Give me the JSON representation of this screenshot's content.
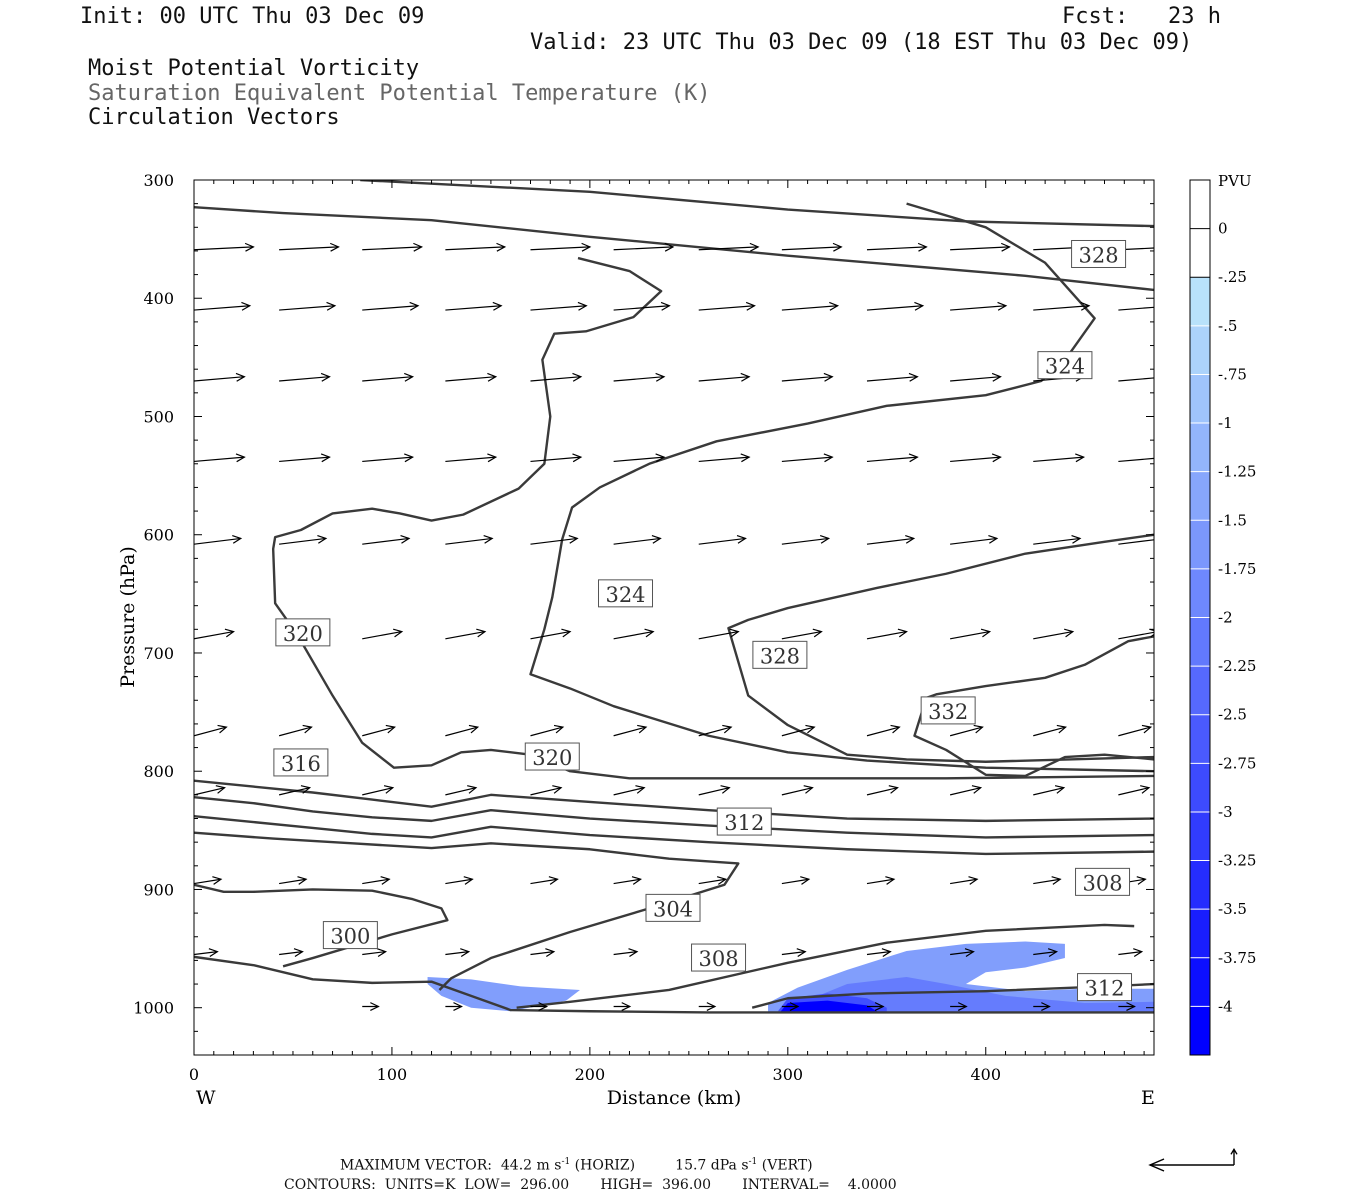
{
  "header": {
    "init": "Init: 00 UTC Thu 03 Dec 09",
    "fcst": "Fcst:   23 h",
    "valid": "Valid: 23 UTC Thu 03 Dec 09 (18 EST Thu 03 Dec 09)",
    "field1": "Moist Potential Vorticity",
    "field2": "Saturation Equivalent Potential Temperature (K)",
    "field3": "Circulation Vectors"
  },
  "footer": {
    "max_label": "MAXIMUM VECTOR:",
    "horiz_value": "44.2",
    "horiz_unit": "m s",
    "horiz_exp": "-1",
    "horiz_tag": "(HORIZ)",
    "vert_value": "15.7",
    "vert_unit": "dPa s",
    "vert_exp": "-1",
    "vert_tag": "(VERT)",
    "contours": "CONTOURS:  UNITS=K  LOW=  296.00       HIGH=  396.00       INTERVAL=    4.0000"
  },
  "colors": {
    "contour": "#3a3a3a",
    "pv_light": "#b8e2fb",
    "pv_dark": "#0000ff"
  },
  "chart_data": {
    "type": "contour",
    "xlabel": "Distance (km)",
    "ylabel": "Pressure (hPa)",
    "xlim": [
      0,
      485
    ],
    "ylim": [
      1040,
      300
    ],
    "x_ticks": [
      0,
      100,
      200,
      300,
      400
    ],
    "x_tick_labels": [
      "0",
      "100",
      "200",
      "300",
      "400"
    ],
    "y_ticks": [
      300,
      400,
      500,
      600,
      700,
      800,
      900,
      1000
    ],
    "y_tick_labels": [
      "300",
      "400",
      "500",
      "600",
      "700",
      "800",
      "900",
      "1000"
    ],
    "west_label": "W",
    "east_label": "E",
    "contour_labels": [
      {
        "text": "328",
        "x": 457,
        "p": 363
      },
      {
        "text": "324",
        "x": 440,
        "p": 457
      },
      {
        "text": "324",
        "x": 218,
        "p": 650
      },
      {
        "text": "320",
        "x": 55,
        "p": 683
      },
      {
        "text": "328",
        "x": 296,
        "p": 702
      },
      {
        "text": "332",
        "x": 381,
        "p": 749
      },
      {
        "text": "316",
        "x": 54,
        "p": 793
      },
      {
        "text": "320",
        "x": 181,
        "p": 788
      },
      {
        "text": "312",
        "x": 278,
        "p": 843
      },
      {
        "text": "308",
        "x": 459,
        "p": 894
      },
      {
        "text": "304",
        "x": 242,
        "p": 916
      },
      {
        "text": "300",
        "x": 79,
        "p": 939
      },
      {
        "text": "308",
        "x": 265,
        "p": 958
      },
      {
        "text": "312",
        "x": 460,
        "p": 983
      }
    ],
    "contour_lines": [
      [
        [
          84,
          300
        ],
        [
          200,
          310
        ],
        [
          300,
          325
        ],
        [
          390,
          335
        ],
        [
          485,
          339
        ]
      ],
      [
        [
          0,
          323
        ],
        [
          45,
          328
        ],
        [
          120,
          334
        ],
        [
          200,
          348
        ],
        [
          300,
          364
        ],
        [
          420,
          381
        ],
        [
          485,
          393
        ]
      ],
      [
        [
          194,
          366
        ],
        [
          220,
          377
        ],
        [
          236,
          394
        ],
        [
          222,
          416
        ],
        [
          198,
          428
        ],
        [
          182,
          430
        ],
        [
          176,
          452
        ],
        [
          180,
          500
        ],
        [
          177,
          540
        ],
        [
          164,
          561
        ],
        [
          136,
          583
        ],
        [
          120,
          588
        ],
        [
          104,
          582
        ],
        [
          90,
          578
        ],
        [
          70,
          582
        ],
        [
          54,
          596
        ],
        [
          41,
          602
        ],
        [
          40,
          612
        ],
        [
          41,
          658
        ],
        [
          52,
          684
        ],
        [
          70,
          736
        ],
        [
          85,
          776
        ],
        [
          101,
          797
        ],
        [
          120,
          795
        ],
        [
          135,
          784
        ],
        [
          150,
          782
        ],
        [
          170,
          786
        ],
        [
          190,
          800
        ],
        [
          220,
          806
        ],
        [
          260,
          806
        ],
        [
          320,
          806
        ],
        [
          380,
          806
        ],
        [
          485,
          804
        ]
      ],
      [
        [
          360,
          320
        ],
        [
          400,
          340
        ],
        [
          430,
          370
        ],
        [
          455,
          417
        ],
        [
          441,
          450
        ],
        [
          428,
          470
        ],
        [
          400,
          482
        ],
        [
          350,
          491
        ],
        [
          310,
          506
        ],
        [
          264,
          521
        ],
        [
          230,
          540
        ],
        [
          205,
          560
        ],
        [
          191,
          577
        ],
        [
          186,
          604
        ],
        [
          181,
          653
        ],
        [
          177,
          680
        ],
        [
          170,
          718
        ],
        [
          190,
          730
        ],
        [
          212,
          745
        ],
        [
          260,
          770
        ],
        [
          300,
          784
        ],
        [
          340,
          791
        ],
        [
          400,
          797
        ],
        [
          485,
          800
        ]
      ],
      [
        [
          485,
          600
        ],
        [
          460,
          606
        ],
        [
          420,
          616
        ],
        [
          380,
          633
        ],
        [
          345,
          645
        ],
        [
          300,
          662
        ],
        [
          280,
          672
        ],
        [
          270,
          679
        ],
        [
          280,
          736
        ],
        [
          300,
          761
        ],
        [
          330,
          786
        ],
        [
          360,
          790
        ],
        [
          400,
          792
        ],
        [
          485,
          788
        ]
      ],
      [
        [
          485,
          686
        ],
        [
          472,
          690
        ],
        [
          450,
          710
        ],
        [
          430,
          721
        ],
        [
          400,
          728
        ],
        [
          375,
          735
        ],
        [
          370,
          738
        ],
        [
          364,
          770
        ],
        [
          380,
          782
        ],
        [
          400,
          803
        ],
        [
          420,
          804
        ],
        [
          440,
          788
        ],
        [
          460,
          786
        ],
        [
          485,
          790
        ]
      ],
      [
        [
          0,
          808
        ],
        [
          30,
          813
        ],
        [
          60,
          818
        ],
        [
          90,
          824
        ],
        [
          120,
          830
        ],
        [
          150,
          820
        ],
        [
          200,
          826
        ],
        [
          260,
          833
        ],
        [
          330,
          840
        ],
        [
          400,
          842
        ],
        [
          485,
          840
        ]
      ],
      [
        [
          0,
          822
        ],
        [
          30,
          827
        ],
        [
          60,
          834
        ],
        [
          90,
          839
        ],
        [
          120,
          842
        ],
        [
          150,
          833
        ],
        [
          200,
          840
        ],
        [
          260,
          846
        ],
        [
          330,
          852
        ],
        [
          400,
          856
        ],
        [
          485,
          854
        ]
      ],
      [
        [
          0,
          838
        ],
        [
          30,
          843
        ],
        [
          60,
          848
        ],
        [
          90,
          853
        ],
        [
          120,
          856
        ],
        [
          150,
          847
        ],
        [
          200,
          854
        ],
        [
          260,
          860
        ],
        [
          330,
          866
        ],
        [
          400,
          870
        ],
        [
          485,
          868
        ]
      ],
      [
        [
          0,
          852
        ],
        [
          40,
          857
        ],
        [
          80,
          861
        ],
        [
          120,
          865
        ],
        [
          150,
          861
        ],
        [
          200,
          866
        ],
        [
          240,
          874
        ],
        [
          275,
          878
        ],
        [
          268,
          896
        ],
        [
          230,
          916
        ],
        [
          190,
          936
        ],
        [
          150,
          958
        ],
        [
          130,
          975
        ],
        [
          124,
          985
        ]
      ],
      [
        [
          0,
          896
        ],
        [
          15,
          902
        ],
        [
          30,
          902
        ],
        [
          60,
          900
        ],
        [
          90,
          901
        ],
        [
          110,
          908
        ],
        [
          125,
          916
        ],
        [
          128,
          926
        ],
        [
          100,
          938
        ],
        [
          60,
          958
        ],
        [
          45,
          965
        ]
      ],
      [
        [
          0,
          957
        ],
        [
          30,
          964
        ],
        [
          60,
          976
        ],
        [
          90,
          979
        ],
        [
          120,
          978
        ],
        [
          140,
          990
        ],
        [
          160,
          1002
        ],
        [
          200,
          1003
        ],
        [
          260,
          1004
        ],
        [
          330,
          1004
        ],
        [
          485,
          1004
        ]
      ],
      [
        [
          163,
          1000
        ],
        [
          190,
          995
        ],
        [
          240,
          985
        ],
        [
          300,
          962
        ],
        [
          350,
          945
        ],
        [
          400,
          935
        ],
        [
          460,
          930
        ],
        [
          475,
          931
        ]
      ],
      [
        [
          282,
          1000
        ],
        [
          300,
          992
        ],
        [
          340,
          988
        ],
        [
          400,
          986
        ],
        [
          460,
          982
        ],
        [
          485,
          980
        ]
      ]
    ],
    "vectors": [
      {
        "p": 359,
        "xs": [
          0,
          43,
          85,
          127,
          170,
          212,
          255,
          297,
          340,
          382,
          424,
          467
        ],
        "u": 33,
        "v": 2
      },
      {
        "p": 410,
        "xs": [
          0,
          43,
          85,
          127,
          170,
          212,
          255,
          297,
          340,
          382,
          424,
          467
        ],
        "u": 31,
        "v": 3
      },
      {
        "p": 470,
        "xs": [
          0,
          43,
          85,
          127,
          170,
          212,
          255,
          297,
          340,
          382,
          424,
          467
        ],
        "u": 28,
        "v": 3
      },
      {
        "p": 538,
        "xs": [
          0,
          43,
          85,
          127,
          170,
          212,
          255,
          297,
          340,
          382,
          424,
          467
        ],
        "u": 28,
        "v": 3
      },
      {
        "p": 608,
        "xs": [
          0,
          43,
          85,
          127,
          170,
          212,
          255,
          297,
          340,
          382,
          424,
          467
        ],
        "u": 26,
        "v": 4
      },
      {
        "p": 688,
        "xs": [
          0,
          43,
          85,
          127,
          170,
          212,
          255,
          297,
          340,
          382,
          424,
          467
        ],
        "u": 22,
        "v": 5
      },
      {
        "p": 770,
        "xs": [
          0,
          43,
          85,
          127,
          170,
          212,
          255,
          297,
          340,
          382,
          424,
          467
        ],
        "u": 18,
        "v": 6
      },
      {
        "p": 820,
        "xs": [
          0,
          43,
          85,
          127,
          170,
          212,
          255,
          297,
          340,
          382,
          424,
          467
        ],
        "u": 17,
        "v": 5
      },
      {
        "p": 895,
        "xs": [
          0,
          43,
          85,
          127,
          170,
          212,
          255,
          297,
          340,
          382,
          424,
          467
        ],
        "u": 15,
        "v": 3
      },
      {
        "p": 955,
        "xs": [
          0,
          43,
          85,
          127,
          170,
          212,
          255,
          297,
          340,
          382,
          424,
          467
        ],
        "u": 13,
        "v": 2
      },
      {
        "p": 999,
        "xs": [
          85,
          127,
          170,
          212,
          255,
          297,
          340,
          382,
          424,
          467
        ],
        "u": 9,
        "v": 0
      }
    ],
    "pv_shading": [
      {
        "level": 0.3,
        "pts": [
          [
            118,
            974
          ],
          [
            140,
            976
          ],
          [
            165,
            982
          ],
          [
            195,
            985
          ],
          [
            188,
            994
          ],
          [
            160,
            1003
          ],
          [
            140,
            1000
          ],
          [
            125,
            990
          ],
          [
            118,
            980
          ]
        ]
      },
      {
        "level": 0.3,
        "pts": [
          [
            290,
            996
          ],
          [
            305,
            983
          ],
          [
            330,
            968
          ],
          [
            360,
            952
          ],
          [
            390,
            946
          ],
          [
            420,
            944
          ],
          [
            440,
            946
          ],
          [
            440,
            958
          ],
          [
            420,
            966
          ],
          [
            400,
            970
          ],
          [
            390,
            980
          ],
          [
            420,
            986
          ],
          [
            450,
            984
          ],
          [
            485,
            984
          ],
          [
            485,
            1004
          ],
          [
            290,
            1004
          ]
        ]
      },
      {
        "level": 0.45,
        "pts": [
          [
            305,
            997
          ],
          [
            330,
            980
          ],
          [
            360,
            974
          ],
          [
            380,
            980
          ],
          [
            410,
            990
          ],
          [
            450,
            996
          ],
          [
            485,
            995
          ],
          [
            485,
            1004
          ],
          [
            305,
            1004
          ]
        ]
      },
      {
        "level": 0.65,
        "pts": [
          [
            295,
            1003
          ],
          [
            300,
            992
          ],
          [
            320,
            988
          ],
          [
            340,
            992
          ],
          [
            350,
            1000
          ],
          [
            350,
            1004
          ]
        ]
      },
      {
        "level": 1.0,
        "pts": [
          [
            296,
            1004
          ],
          [
            300,
            996
          ],
          [
            320,
            994
          ],
          [
            340,
            998
          ],
          [
            346,
            1004
          ]
        ]
      }
    ],
    "colorbar": {
      "title": "PVU",
      "labels": [
        "0",
        "-.25",
        "-.5",
        "-.75",
        "-1",
        "-1.25",
        "-1.5",
        "-1.75",
        "-2",
        "-2.25",
        "-2.5",
        "-2.75",
        "-3",
        "-3.25",
        "-3.5",
        "-3.75",
        "-4"
      ],
      "n_levels": 18
    },
    "legend_vector": {
      "u": 44.2,
      "v": 15.7
    }
  }
}
